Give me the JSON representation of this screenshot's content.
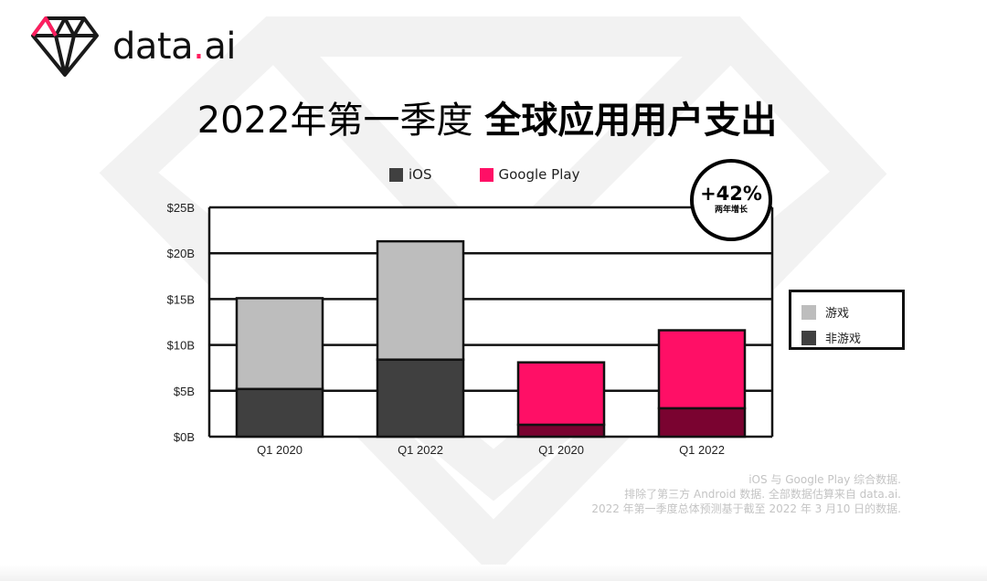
{
  "brand": {
    "name": "data",
    "dot": ".",
    "suffix": "ai"
  },
  "title": {
    "regular": "2022年第一季度 ",
    "bold": "全球应用用户支出"
  },
  "legend_series": [
    {
      "label": "iOS",
      "color": "#404040"
    },
    {
      "label": "Google Play",
      "color": "#ff0f66"
    }
  ],
  "legend_stack": [
    {
      "label": "游戏",
      "color": "#bdbdbd"
    },
    {
      "label": "非游戏",
      "color": "#404040"
    }
  ],
  "growth_badge": {
    "value": "+42%",
    "caption": "两年增长"
  },
  "chart_data": {
    "type": "bar",
    "stacked": true,
    "categories": [
      "Q1 2020",
      "Q1 2022",
      "Q1 2020",
      "Q1 2022"
    ],
    "platform_per_bar": [
      "iOS",
      "iOS",
      "Google Play",
      "Google Play"
    ],
    "y_ticks": [
      "$0B",
      "$5B",
      "$10B",
      "$15B",
      "$20B",
      "$25B"
    ],
    "ylim": [
      0,
      25
    ],
    "grid": true,
    "series": [
      {
        "name": "非游戏",
        "values": [
          5.2,
          8.4,
          1.3,
          3.1
        ],
        "colors": [
          "#404040",
          "#404040",
          "#7a0330",
          "#7a0330"
        ]
      },
      {
        "name": "游戏",
        "values": [
          9.9,
          12.9,
          6.8,
          8.5
        ],
        "colors": [
          "#bdbdbd",
          "#bdbdbd",
          "#ff0f66",
          "#ff0f66"
        ]
      }
    ]
  },
  "footnote": [
    "iOS 与 Google Play 综合数据.",
    "排除了第三方 Android 数据. 全部数据估算来自 data.ai.",
    "2022 年第一季度总体预测基于截至 2022 年 3 月10 日的数据."
  ]
}
